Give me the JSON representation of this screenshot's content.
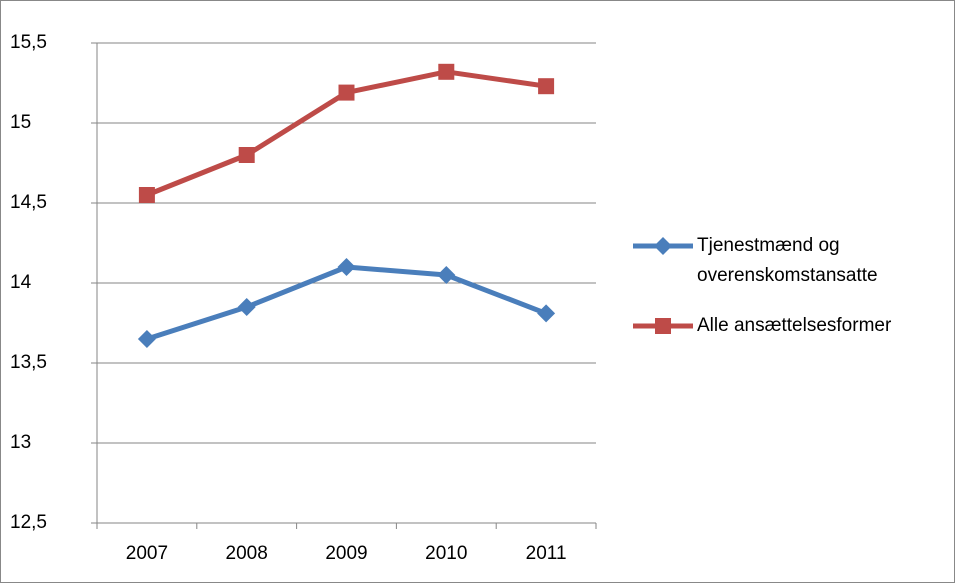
{
  "chart_data": {
    "type": "line",
    "categories": [
      "2007",
      "2008",
      "2009",
      "2010",
      "2011"
    ],
    "series": [
      {
        "name": "Tjenestmænd og overenskomstansatte",
        "color": "#4a7ebb",
        "marker": "diamond",
        "values": [
          13.65,
          13.85,
          14.1,
          14.05,
          13.81
        ]
      },
      {
        "name": "Alle ansættelsesformer",
        "color": "#be4b48",
        "marker": "square",
        "values": [
          14.55,
          14.8,
          15.19,
          15.32,
          15.23
        ]
      }
    ],
    "ylim": [
      12.5,
      15.5
    ],
    "yticks": [
      {
        "value": 12.5,
        "label": "12,5"
      },
      13,
      {
        "value": 13.5,
        "label": "13,5"
      },
      14,
      {
        "value": 14.5,
        "label": "14,5"
      },
      15,
      {
        "value": 15.5,
        "label": "15,5"
      }
    ],
    "grid": true,
    "legend": "right"
  }
}
